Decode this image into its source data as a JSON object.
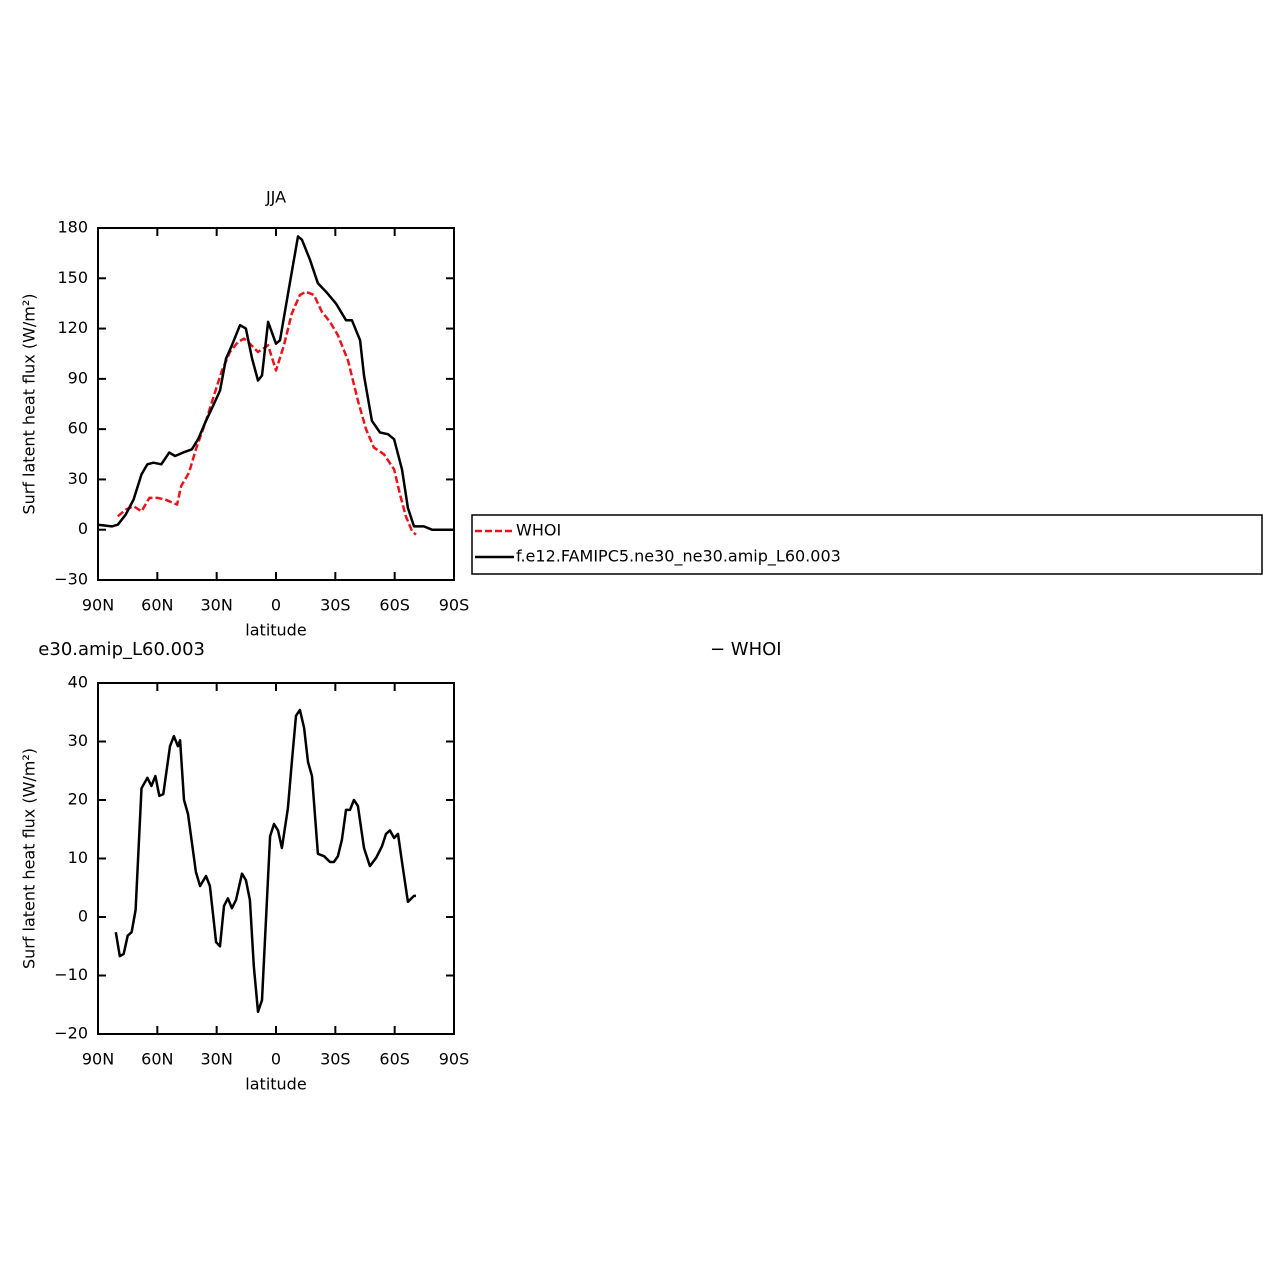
{
  "chart_data": [
    {
      "type": "line",
      "title": "JJA",
      "x_label": "latitude",
      "y_label": "Surf latent heat flux (W/m²)",
      "xlim": [
        90,
        -90
      ],
      "ylim": [
        -30,
        180
      ],
      "xticks": [
        {
          "value": 90,
          "label": "90N"
        },
        {
          "value": 60,
          "label": "60N"
        },
        {
          "value": 30,
          "label": "30N"
        },
        0,
        {
          "value": -30,
          "label": "30S"
        },
        {
          "value": -60,
          "label": "60S"
        },
        {
          "value": -90,
          "label": "90S"
        }
      ],
      "yticks": [
        {
          "value": -30,
          "label": "−30"
        },
        0,
        30,
        60,
        90,
        120,
        150,
        180
      ],
      "legend": "outside-right",
      "series": [
        {
          "name": "WHOI",
          "color": "#e8141b",
          "dashed": true,
          "x": [
            80,
            76,
            72,
            68,
            64,
            60,
            56,
            50,
            48,
            44,
            40.5,
            35.4,
            31.4,
            27.3,
            23.3,
            19.2,
            16.2,
            13.2,
            9.1,
            4,
            0,
            -4,
            -8,
            -12.1,
            -15.1,
            -19.2,
            -23.2,
            -27.3,
            -31.3,
            -36.4,
            -41.4,
            -45.5,
            -49.5,
            -54.6,
            -59.7,
            -62.7,
            -65.7,
            -68.8,
            -70.8
          ],
          "values": [
            8,
            12,
            14,
            11,
            19,
            19,
            18,
            15,
            26,
            34,
            48,
            65,
            80,
            95,
            106,
            112,
            114,
            111,
            106,
            110,
            95,
            110,
            129,
            140,
            142,
            140,
            130,
            124,
            116,
            101,
            77,
            60,
            49,
            45,
            36,
            21,
            8,
            -1,
            -3
          ]
        },
        {
          "name": "f.e12.FAMIPC5.ne30_ne30.amip_L60.003",
          "color": "#000000",
          "dashed": false,
          "x": [
            90,
            83,
            80,
            76,
            72,
            68,
            65,
            62,
            58,
            54,
            51,
            47,
            42.5,
            39.4,
            35.4,
            31.4,
            28.3,
            25.3,
            22.3,
            18.2,
            15.2,
            12.1,
            9.1,
            7.1,
            4,
            0,
            -2,
            -7,
            -11.1,
            -13.1,
            -17.2,
            -21.2,
            -25.3,
            -30.3,
            -35.4,
            -38.4,
            -42.5,
            -44.5,
            -48.5,
            -52.6,
            -56.6,
            -59.7,
            -63.7,
            -66.7,
            -69.8,
            -74.8,
            -78.9,
            -90
          ],
          "values": [
            3,
            2,
            3,
            9,
            18,
            33,
            39,
            40,
            39,
            46,
            44,
            46,
            48,
            54,
            65,
            75,
            83,
            102,
            110,
            122,
            120,
            102,
            89,
            92,
            124,
            111,
            113,
            147,
            175,
            173,
            161,
            147,
            142,
            135,
            125,
            125,
            113,
            92,
            65,
            58,
            57,
            54,
            36,
            13,
            2,
            2,
            0,
            0
          ]
        }
      ]
    },
    {
      "type": "line",
      "title_parts": [
        "e30.amip_L60.003",
        "− WHOI"
      ],
      "x_label": "latitude",
      "y_label": "Surf latent heat flux (W/m²)",
      "xlim": [
        90,
        -90
      ],
      "ylim": [
        -20,
        40
      ],
      "xticks": [
        {
          "value": 90,
          "label": "90N"
        },
        {
          "value": 60,
          "label": "60N"
        },
        {
          "value": 30,
          "label": "30N"
        },
        0,
        {
          "value": -30,
          "label": "30S"
        },
        {
          "value": -60,
          "label": "60S"
        },
        {
          "value": -90,
          "label": "90S"
        }
      ],
      "yticks": [
        {
          "value": -20,
          "label": "−20"
        },
        {
          "value": -10,
          "label": "−10"
        },
        0,
        10,
        20,
        30,
        40
      ],
      "series": [
        {
          "color": "#000000",
          "dashed": false,
          "x": [
            81,
            79,
            77,
            75,
            73,
            71,
            68,
            65,
            63,
            61,
            59,
            57,
            53.6,
            51.6,
            49.6,
            48.5,
            46.5,
            44.5,
            40.5,
            38.4,
            35.4,
            33.4,
            30.3,
            28.3,
            26.3,
            24.3,
            22.3,
            20.2,
            17.2,
            15.2,
            13.2,
            11.2,
            9.1,
            7.1,
            3,
            1,
            -1,
            -3,
            -6,
            -8.1,
            -10.1,
            -12.1,
            -14.2,
            -16.2,
            -18.2,
            -21.2,
            -24.3,
            -27.3,
            -29.3,
            -31.3,
            -33.3,
            -35.4,
            -37.4,
            -39.4,
            -41.4,
            -44.5,
            -47.5,
            -50.6,
            -53.6,
            -55.6,
            -57.6,
            -59.7,
            -61.7,
            -63.7,
            -66.7,
            -69.8,
            -70.8
          ],
          "values": [
            -2.6,
            -6.7,
            -6.3,
            -3.2,
            -2.6,
            1.2,
            22,
            23.8,
            22.4,
            24.1,
            20.7,
            21,
            29.2,
            30.9,
            29.2,
            30.2,
            20,
            17.6,
            7.7,
            5.3,
            7,
            5.3,
            -4.3,
            -5,
            1.9,
            3.2,
            1.5,
            2.9,
            7.4,
            6.3,
            2.9,
            -8.4,
            -16.2,
            -14.2,
            13.8,
            15.9,
            14.8,
            11.8,
            18.6,
            26.8,
            34.4,
            35.4,
            32.3,
            26.5,
            24.1,
            10.8,
            10.4,
            9.4,
            9.4,
            10.4,
            13.2,
            18.3,
            18.3,
            20,
            19,
            11.8,
            8.7,
            10.1,
            12.1,
            14.2,
            14.8,
            13.5,
            14.2,
            9.4,
            2.6,
            3.6,
            3.6
          ]
        }
      ]
    }
  ]
}
